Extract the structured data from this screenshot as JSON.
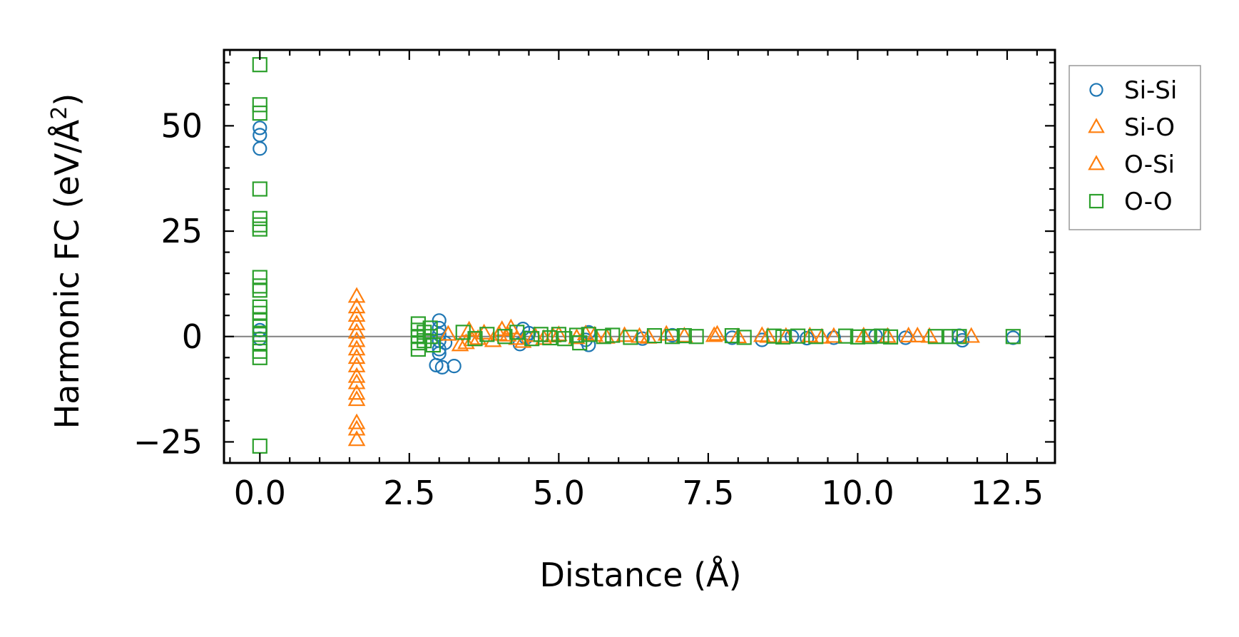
{
  "chart_data": {
    "type": "scatter",
    "title": "",
    "xlabel": "Distance (Å)",
    "ylabel_main": "Harmonic FC (eV/Å",
    "ylabel_sup": "2",
    "ylabel_close": ")",
    "xlim": [
      -0.6,
      13.3
    ],
    "ylim": [
      -30,
      68
    ],
    "xticks": [
      0.0,
      2.5,
      5.0,
      7.5,
      10.0,
      12.5
    ],
    "xtick_labels": [
      "0.0",
      "2.5",
      "5.0",
      "7.5",
      "10.0",
      "12.5"
    ],
    "yticks": [
      -25,
      0,
      25,
      50
    ],
    "ytick_labels": [
      "−25",
      "0",
      "25",
      "50"
    ],
    "x_minor_step": 0.5,
    "y_minor_step": 5,
    "hline_y": 0,
    "legend_position": "outside-right-top",
    "series": [
      {
        "name": "Si-Si",
        "marker": "circle",
        "color": "#1f77b4",
        "points": [
          [
            0.0,
            49.5
          ],
          [
            0.0,
            47.8
          ],
          [
            0.0,
            44.6
          ],
          [
            0.0,
            1.5
          ],
          [
            0.0,
            -0.5
          ],
          [
            3.0,
            3.8
          ],
          [
            3.0,
            2.0
          ],
          [
            3.0,
            0.5
          ],
          [
            3.0,
            -1.0
          ],
          [
            3.0,
            -3.0
          ],
          [
            3.0,
            -4.0
          ],
          [
            2.95,
            -6.8
          ],
          [
            3.05,
            -7.3
          ],
          [
            3.25,
            -7.0
          ],
          [
            3.1,
            -1.5
          ],
          [
            4.4,
            1.8
          ],
          [
            4.45,
            -0.3
          ],
          [
            4.35,
            -1.8
          ],
          [
            4.5,
            0.8
          ],
          [
            5.5,
            1.0
          ],
          [
            5.5,
            -2.0
          ],
          [
            5.45,
            -0.8
          ],
          [
            6.4,
            -0.5
          ],
          [
            6.9,
            0.3
          ],
          [
            7.9,
            -0.3
          ],
          [
            8.4,
            -0.8
          ],
          [
            8.9,
            0.0
          ],
          [
            9.15,
            -0.4
          ],
          [
            9.6,
            -0.3
          ],
          [
            10.3,
            0.2
          ],
          [
            10.8,
            -0.3
          ],
          [
            11.7,
            0.2
          ],
          [
            11.75,
            -0.9
          ],
          [
            12.6,
            -0.3
          ]
        ]
      },
      {
        "name": "Si-O",
        "marker": "triangle",
        "color": "#ff7f0e",
        "points": [
          [
            1.62,
            9.5
          ],
          [
            1.62,
            7.0
          ],
          [
            1.62,
            5.0
          ],
          [
            1.62,
            3.0
          ],
          [
            1.62,
            1.0
          ],
          [
            1.62,
            -1.0
          ],
          [
            1.62,
            -3.0
          ],
          [
            1.62,
            -5.0
          ],
          [
            1.62,
            -7.0
          ],
          [
            1.62,
            -9.5
          ],
          [
            1.62,
            -11.0
          ],
          [
            1.62,
            -13.5
          ],
          [
            1.62,
            -15.0
          ],
          [
            1.62,
            -20.5
          ],
          [
            1.62,
            -22.0
          ],
          [
            1.62,
            -24.5
          ],
          [
            3.15,
            0.5
          ],
          [
            3.35,
            -2.0
          ],
          [
            3.5,
            1.5
          ],
          [
            3.55,
            -0.8
          ],
          [
            3.75,
            0.8
          ],
          [
            3.9,
            -1.0
          ],
          [
            4.05,
            1.6
          ],
          [
            4.15,
            0.3
          ],
          [
            4.2,
            2.0
          ],
          [
            4.4,
            -1.2
          ],
          [
            4.6,
            0.2
          ],
          [
            4.75,
            -0.5
          ],
          [
            5.0,
            0.4
          ],
          [
            5.3,
            -0.3
          ],
          [
            5.6,
            0.3
          ],
          [
            5.8,
            -0.2
          ],
          [
            6.1,
            0.2
          ],
          [
            6.5,
            -0.2
          ],
          [
            6.8,
            0.5
          ],
          [
            7.1,
            0.1
          ],
          [
            7.6,
            0.2
          ],
          [
            8.0,
            -0.1
          ],
          [
            8.4,
            0.2
          ],
          [
            8.8,
            0.0
          ],
          [
            9.2,
            0.1
          ],
          [
            9.6,
            0.0
          ],
          [
            10.1,
            0.1
          ],
          [
            10.5,
            0.0
          ],
          [
            11.0,
            0.1
          ]
        ]
      },
      {
        "name": "O-Si",
        "marker": "triangle",
        "color": "#ff7f0e",
        "points": [
          [
            3.45,
            -1.5
          ],
          [
            3.65,
            -0.5
          ],
          [
            4.0,
            0.5
          ],
          [
            4.3,
            -0.5
          ],
          [
            4.9,
            0.1
          ],
          [
            5.45,
            0.6
          ],
          [
            6.35,
            0.0
          ],
          [
            7.65,
            0.5
          ],
          [
            8.5,
            0.0
          ],
          [
            9.4,
            -0.2
          ],
          [
            10.85,
            0.1
          ],
          [
            11.2,
            0.0
          ],
          [
            11.9,
            0.0
          ]
        ]
      },
      {
        "name": "O-O",
        "marker": "square",
        "color": "#2ca02c",
        "points": [
          [
            0.0,
            64.5
          ],
          [
            0.0,
            55.0
          ],
          [
            0.0,
            53.0
          ],
          [
            0.0,
            35.0
          ],
          [
            0.0,
            28.0
          ],
          [
            0.0,
            26.5
          ],
          [
            0.0,
            25.5
          ],
          [
            0.0,
            14.0
          ],
          [
            0.0,
            12.0
          ],
          [
            0.0,
            11.0
          ],
          [
            0.0,
            7.0
          ],
          [
            0.0,
            5.5
          ],
          [
            0.0,
            4.0
          ],
          [
            0.0,
            2.5
          ],
          [
            0.0,
            0.5
          ],
          [
            0.0,
            -1.5
          ],
          [
            0.0,
            -3.5
          ],
          [
            0.0,
            -5.0
          ],
          [
            0.0,
            -26.0
          ],
          [
            2.65,
            3.0
          ],
          [
            2.65,
            1.5
          ],
          [
            2.65,
            0.0
          ],
          [
            2.65,
            -1.5
          ],
          [
            2.65,
            -3.0
          ],
          [
            2.75,
            1.0
          ],
          [
            2.75,
            -1.0
          ],
          [
            2.85,
            2.0
          ],
          [
            2.85,
            0.0
          ],
          [
            2.9,
            -2.0
          ],
          [
            3.4,
            1.0
          ],
          [
            3.6,
            -0.5
          ],
          [
            3.8,
            0.5
          ],
          [
            4.1,
            0.0
          ],
          [
            4.3,
            1.0
          ],
          [
            4.55,
            -0.5
          ],
          [
            4.7,
            0.5
          ],
          [
            4.85,
            -0.3
          ],
          [
            5.0,
            0.5
          ],
          [
            5.1,
            -0.5
          ],
          [
            5.3,
            0.3
          ],
          [
            5.35,
            -1.5
          ],
          [
            5.5,
            0.5
          ],
          [
            5.75,
            0.0
          ],
          [
            5.9,
            0.3
          ],
          [
            6.2,
            -0.2
          ],
          [
            6.6,
            0.2
          ],
          [
            6.9,
            0.0
          ],
          [
            7.1,
            0.2
          ],
          [
            7.3,
            0.0
          ],
          [
            7.9,
            0.2
          ],
          [
            8.1,
            -0.2
          ],
          [
            8.6,
            0.1
          ],
          [
            8.75,
            -0.1
          ],
          [
            9.0,
            0.1
          ],
          [
            9.3,
            0.0
          ],
          [
            9.8,
            0.1
          ],
          [
            10.0,
            -0.1
          ],
          [
            10.2,
            0.0
          ],
          [
            10.4,
            0.1
          ],
          [
            10.55,
            -0.1
          ],
          [
            11.3,
            0.0
          ],
          [
            11.55,
            0.0
          ],
          [
            11.7,
            0.0
          ],
          [
            12.6,
            0.0
          ]
        ]
      }
    ]
  }
}
